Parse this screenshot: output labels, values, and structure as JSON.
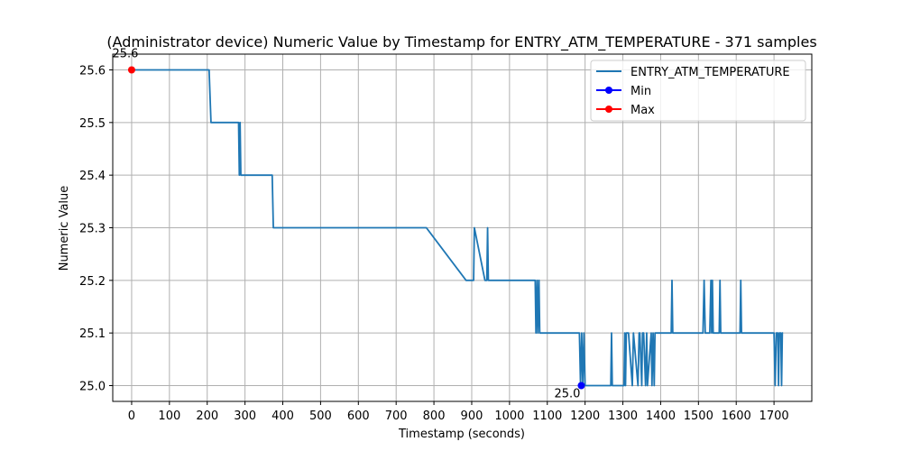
{
  "chart_data": {
    "type": "line",
    "title": "(Administrator device) Numeric Value by Timestamp for ENTRY_ATM_TEMPERATURE - 371 samples",
    "xlabel": "Timestamp (seconds)",
    "ylabel": "Numeric Value",
    "xlim": [
      -50,
      1800
    ],
    "ylim": [
      24.97,
      25.63
    ],
    "xticks": [
      0,
      100,
      200,
      300,
      400,
      500,
      600,
      700,
      800,
      900,
      1000,
      1100,
      1200,
      1300,
      1400,
      1500,
      1600,
      1700
    ],
    "yticks": [
      25.0,
      25.1,
      25.2,
      25.3,
      25.4,
      25.5,
      25.6
    ],
    "ytick_labels": [
      "25.0",
      "25.1",
      "25.2",
      "25.3",
      "25.4",
      "25.5",
      "25.6"
    ],
    "grid": true,
    "legend_position": "top-right",
    "colors": {
      "series": "#1f77b4",
      "min": "#0000ff",
      "max": "#ff0000",
      "grid": "#b0b0b0"
    },
    "series": [
      {
        "name": "ENTRY_ATM_TEMPERATURE",
        "x": [
          0,
          205,
          210,
          283,
          285,
          287,
          289,
          291,
          372,
          375,
          780,
          885,
          905,
          907,
          935,
          940,
          942,
          944,
          1068,
          1070,
          1073,
          1075,
          1078,
          1080,
          1185,
          1188,
          1191,
          1194,
          1197,
          1200,
          1205,
          1268,
          1270,
          1272,
          1303,
          1305,
          1307,
          1309,
          1312,
          1315,
          1325,
          1328,
          1340,
          1343,
          1345,
          1350,
          1352,
          1355,
          1360,
          1363,
          1365,
          1375,
          1377,
          1380,
          1383,
          1385,
          1395,
          1428,
          1430,
          1432,
          1512,
          1515,
          1518,
          1530,
          1533,
          1535,
          1537,
          1539,
          1541,
          1555,
          1557,
          1559,
          1610,
          1612,
          1614,
          1700,
          1703,
          1706,
          1710,
          1712,
          1714,
          1716,
          1718,
          1720,
          1722,
          1724
        ],
        "values": [
          25.6,
          25.6,
          25.5,
          25.5,
          25.4,
          25.5,
          25.4,
          25.4,
          25.4,
          25.3,
          25.3,
          25.2,
          25.2,
          25.3,
          25.2,
          25.2,
          25.3,
          25.2,
          25.2,
          25.1,
          25.2,
          25.1,
          25.2,
          25.1,
          25.1,
          25.0,
          25.1,
          25.0,
          25.1,
          25.0,
          25.0,
          25.0,
          25.1,
          25.0,
          25.0,
          25.1,
          25.0,
          25.1,
          25.1,
          25.1,
          25.0,
          25.1,
          25.0,
          25.1,
          25.1,
          25.0,
          25.1,
          25.1,
          25.0,
          25.1,
          25.0,
          25.1,
          25.0,
          25.1,
          25.0,
          25.1,
          25.1,
          25.1,
          25.2,
          25.1,
          25.1,
          25.2,
          25.1,
          25.1,
          25.2,
          25.1,
          25.2,
          25.1,
          25.1,
          25.1,
          25.2,
          25.1,
          25.1,
          25.2,
          25.1,
          25.1,
          25.0,
          25.1,
          25.1,
          25.0,
          25.1,
          25.1,
          25.1,
          25.0,
          25.1,
          25.1
        ]
      }
    ],
    "min_point": {
      "label": "Min",
      "x": 1190,
      "y": 25.0,
      "annotation": "25.0"
    },
    "max_point": {
      "label": "Max",
      "x": 0,
      "y": 25.6,
      "annotation": "25.6"
    }
  }
}
